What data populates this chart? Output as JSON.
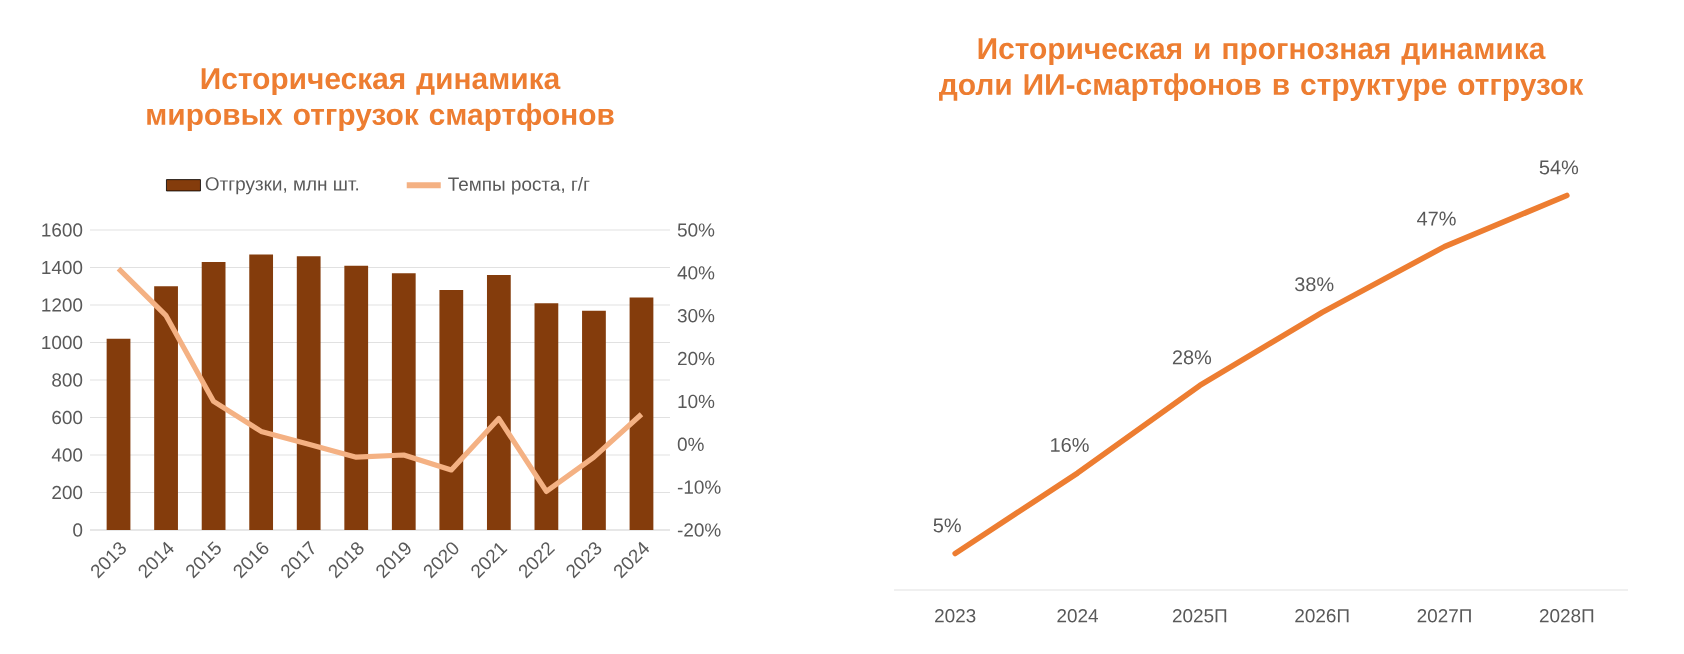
{
  "chart_data": [
    {
      "type": "bar",
      "title": "Историческая динамика мировых отгрузок смартфонов",
      "categories": [
        "2013",
        "2014",
        "2015",
        "2016",
        "2017",
        "2018",
        "2019",
        "2020",
        "2021",
        "2022",
        "2023",
        "2024"
      ],
      "series": [
        {
          "name": "Отгрузки, млн шт.",
          "color": "#843c0c",
          "values": [
            1020,
            1300,
            1430,
            1470,
            1460,
            1410,
            1370,
            1280,
            1360,
            1210,
            1170,
            1240
          ]
        },
        {
          "name": "Темпы роста, г/г",
          "type": "line",
          "axis": "y2",
          "color": "#f4b183",
          "values": [
            41,
            30,
            10,
            3,
            0,
            -3,
            -2.5,
            -6,
            6,
            -11,
            -3,
            7
          ]
        }
      ],
      "ylim": [
        0,
        1600
      ],
      "yticks": [
        0,
        200,
        400,
        600,
        800,
        1000,
        1200,
        1400,
        1600
      ],
      "y2lim": [
        -20,
        50
      ],
      "y2ticks": [
        {
          "value": -20,
          "label": "-20%"
        },
        {
          "value": -10,
          "label": "-10%"
        },
        {
          "value": 0,
          "label": "0%"
        },
        {
          "value": 10,
          "label": "10%"
        },
        {
          "value": 20,
          "label": "20%"
        },
        {
          "value": 30,
          "label": "30%"
        },
        {
          "value": 40,
          "label": "40%"
        },
        {
          "value": 50,
          "label": "50%"
        }
      ],
      "grid": "y",
      "legend": "top"
    },
    {
      "type": "line",
      "title": "Историческая и прогнозная динамика доли ИИ-смартфонов в структуре отгрузок",
      "categories": [
        "2023",
        "2024",
        "2025П",
        "2026П",
        "2027П",
        "2028П"
      ],
      "values": [
        5,
        16,
        28,
        38,
        47,
        54
      ],
      "color": "#ed7d31",
      "value_labels": [
        "5%",
        "16%",
        "28%",
        "38%",
        "47%",
        "54%"
      ],
      "tick_labels": "x"
    }
  ]
}
